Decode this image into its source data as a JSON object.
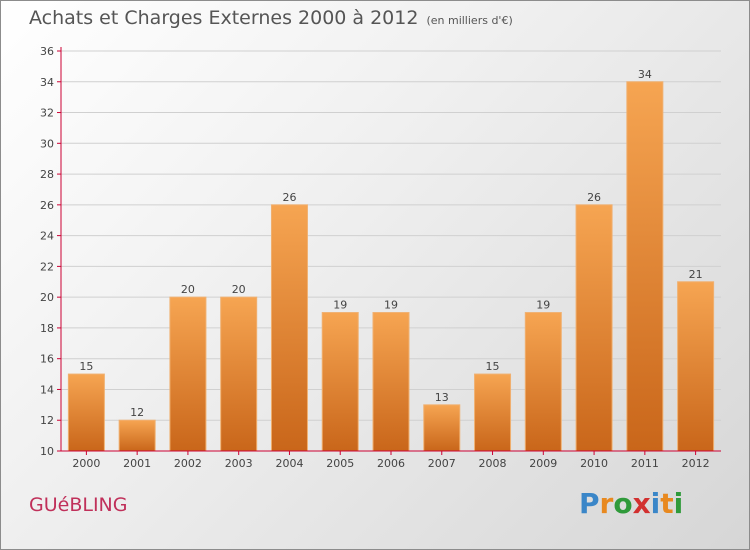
{
  "header": {
    "title": "Achats et Charges Externes 2000 à 2012",
    "unit": "(en milliers d'€)"
  },
  "footer": {
    "commune": "GUéBLING",
    "logo_letters": [
      "P",
      "r",
      "o",
      "x",
      "i",
      "t",
      "i"
    ],
    "logo_colors": [
      "#3a86c8",
      "#e8891f",
      "#2f9a3a",
      "#d2302f",
      "#3a86c8",
      "#e8891f",
      "#2f9a3a"
    ]
  },
  "colors": {
    "bar_top": "#f6a552",
    "bar_bottom": "#c9661a",
    "axis": "#cc0033",
    "grid": "#d0d0d0",
    "text": "#444444"
  },
  "chart_data": {
    "type": "bar",
    "title": "Achats et Charges Externes 2000 à 2012",
    "subtitle": "(en milliers d'€)",
    "categories": [
      "2000",
      "2001",
      "2002",
      "2003",
      "2004",
      "2005",
      "2006",
      "2007",
      "2008",
      "2009",
      "2010",
      "2011",
      "2012"
    ],
    "values": [
      15,
      12,
      20,
      20,
      26,
      19,
      19,
      13,
      15,
      19,
      26,
      34,
      21
    ],
    "ylim": [
      10,
      36
    ],
    "yticks": [
      "10",
      "12",
      "14",
      "16",
      "18",
      "20",
      "22",
      "24",
      "26",
      "28",
      "30",
      "32",
      "34",
      "36"
    ],
    "grid": true,
    "legend": "none"
  }
}
